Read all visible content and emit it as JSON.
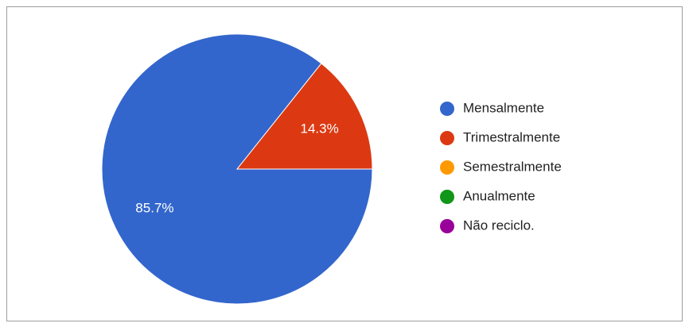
{
  "chart_data": {
    "type": "pie",
    "categories": [
      "Mensalmente",
      "Trimestralmente",
      "Semestralmente",
      "Anualmente",
      "Não reciclo."
    ],
    "values": [
      85.7,
      14.3,
      0,
      0,
      0
    ],
    "value_labels": [
      "85.7%",
      "14.3%",
      null,
      null,
      null
    ],
    "colors": [
      "#3366cc",
      "#dc3912",
      "#ff9900",
      "#109618",
      "#990099"
    ],
    "legend": "right"
  }
}
